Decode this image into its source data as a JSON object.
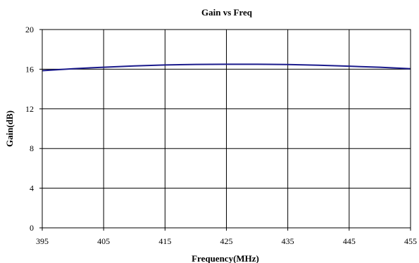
{
  "chart_data": {
    "type": "line",
    "title": "Gain vs Freq",
    "xlabel": "Frequency(MHz)",
    "ylabel": "Gain(dB)",
    "xlim": [
      395,
      455
    ],
    "ylim": [
      0,
      20
    ],
    "x_ticks": [
      395,
      405,
      415,
      425,
      435,
      445,
      455
    ],
    "y_ticks": [
      0,
      4,
      8,
      12,
      16,
      20
    ],
    "grid": true,
    "legend": "none",
    "series": [
      {
        "color": "#1a1a8c",
        "x": [
          395,
          400,
          405,
          410,
          415,
          420,
          425,
          430,
          435,
          440,
          445,
          450,
          455
        ],
        "y": [
          15.85,
          16.05,
          16.2,
          16.33,
          16.43,
          16.48,
          16.5,
          16.5,
          16.47,
          16.4,
          16.3,
          16.2,
          16.05
        ]
      }
    ]
  }
}
